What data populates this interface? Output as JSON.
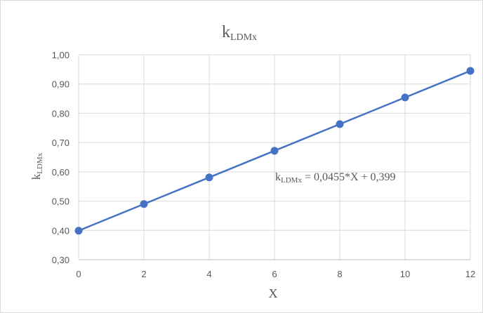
{
  "chart_data": {
    "type": "line",
    "title": {
      "base": "k",
      "sub": "LDMx"
    },
    "xlabel": "X",
    "ylabel": {
      "base": "k",
      "sub": "LDMx"
    },
    "x": [
      0,
      2,
      4,
      6,
      8,
      10,
      12
    ],
    "series": [
      {
        "values": [
          0.399,
          0.49,
          0.581,
          0.672,
          0.763,
          0.854,
          0.945
        ],
        "color": "#4472c4"
      }
    ],
    "xlim": [
      0,
      12
    ],
    "ylim": [
      0.3,
      1.0
    ],
    "x_ticks": [
      "0",
      "2",
      "4",
      "6",
      "8",
      "10",
      "12"
    ],
    "y_ticks": [
      "0,30",
      "0,40",
      "0,50",
      "0,60",
      "0,70",
      "0,80",
      "0,90",
      "1,00"
    ],
    "grid": true,
    "annotation": {
      "base": "k",
      "sub": "LDMx",
      "rest": " = 0,0455*X + 0,399"
    }
  }
}
